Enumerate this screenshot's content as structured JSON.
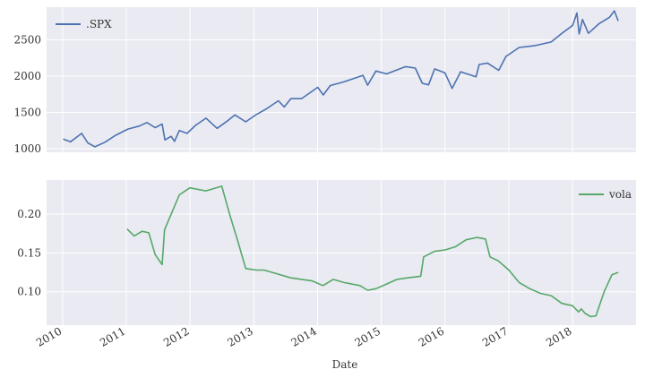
{
  "colors": {
    "panel_background": "#eaeaf2",
    "grid": "#ffffff",
    "spx": "#4c72b0",
    "vola": "#55a868"
  },
  "chart_data": [
    {
      "type": "line",
      "legend_position": "top-left",
      "grid": true,
      "series": [
        {
          "name": ".SPX",
          "color": "#4c72b0",
          "x": [
            "2010-01-04",
            "2010-02-15",
            "2010-04-20",
            "2010-05-25",
            "2010-07-05",
            "2010-09-01",
            "2010-11-01",
            "2011-01-10",
            "2011-03-15",
            "2011-04-29",
            "2011-06-15",
            "2011-07-25",
            "2011-08-10",
            "2011-09-15",
            "2011-10-04",
            "2011-11-01",
            "2011-12-15",
            "2012-02-01",
            "2012-04-02",
            "2012-06-04",
            "2012-08-01",
            "2012-09-14",
            "2012-11-15",
            "2013-01-15",
            "2013-03-15",
            "2013-05-21",
            "2013-06-24",
            "2013-08-01",
            "2013-10-01",
            "2014-01-02",
            "2014-02-03",
            "2014-03-15",
            "2014-06-01",
            "2014-09-18",
            "2014-10-15",
            "2014-12-01",
            "2015-02-01",
            "2015-05-20",
            "2015-07-15",
            "2015-08-24",
            "2015-09-29",
            "2015-11-03",
            "2016-01-01",
            "2016-02-11",
            "2016-03-31",
            "2016-06-27",
            "2016-07-15",
            "2016-09-01",
            "2016-11-04",
            "2016-12-15",
            "2017-03-01",
            "2017-06-01",
            "2017-09-01",
            "2017-11-01",
            "2018-01-02",
            "2018-01-26",
            "2018-02-08",
            "2018-02-27",
            "2018-04-02",
            "2018-06-01",
            "2018-08-01",
            "2018-08-29",
            "2018-09-20"
          ],
          "y": [
            1132,
            1095,
            1210,
            1080,
            1025,
            1090,
            1185,
            1270,
            1310,
            1360,
            1290,
            1340,
            1120,
            1170,
            1100,
            1250,
            1210,
            1320,
            1420,
            1280,
            1380,
            1465,
            1370,
            1470,
            1550,
            1660,
            1575,
            1690,
            1690,
            1845,
            1740,
            1870,
            1920,
            2010,
            1875,
            2070,
            2030,
            2130,
            2110,
            1900,
            1880,
            2100,
            2044,
            1830,
            2060,
            1990,
            2160,
            2180,
            2080,
            2270,
            2395,
            2420,
            2470,
            2590,
            2700,
            2870,
            2580,
            2780,
            2590,
            2720,
            2810,
            2900,
            2760
          ]
        }
      ],
      "ylim": [
        950,
        2950
      ],
      "yticks": [
        "1000",
        "1500",
        "2000",
        "2500"
      ],
      "xlim": [
        "2009-10-01",
        "2018-12-31"
      ]
    },
    {
      "type": "line",
      "legend_position": "top-right",
      "grid": true,
      "series": [
        {
          "name": "vola",
          "color": "#55a868",
          "x": [
            "2011-01-05",
            "2011-02-15",
            "2011-04-01",
            "2011-05-10",
            "2011-06-15",
            "2011-07-25",
            "2011-08-08",
            "2011-09-15",
            "2011-11-01",
            "2011-12-31",
            "2012-04-01",
            "2012-07-01",
            "2012-08-15",
            "2012-10-01",
            "2012-11-15",
            "2013-01-15",
            "2013-03-01",
            "2013-05-01",
            "2013-08-01",
            "2013-10-01",
            "2013-12-01",
            "2014-02-01",
            "2014-04-01",
            "2014-06-01",
            "2014-09-01",
            "2014-10-15",
            "2014-12-01",
            "2015-02-01",
            "2015-04-01",
            "2015-06-01",
            "2015-08-15",
            "2015-09-01",
            "2015-11-01",
            "2016-01-01",
            "2016-03-01",
            "2016-05-01",
            "2016-07-01",
            "2016-08-20",
            "2016-09-15",
            "2016-11-01",
            "2017-01-01",
            "2017-03-01",
            "2017-05-01",
            "2017-07-01",
            "2017-09-01",
            "2017-11-01",
            "2018-01-01",
            "2018-02-05",
            "2018-02-20",
            "2018-03-15",
            "2018-04-15",
            "2018-05-15",
            "2018-07-01",
            "2018-08-15",
            "2018-09-20"
          ],
          "y": [
            0.181,
            0.172,
            0.178,
            0.176,
            0.148,
            0.135,
            0.18,
            0.2,
            0.225,
            0.234,
            0.23,
            0.236,
            0.2,
            0.165,
            0.13,
            0.128,
            0.128,
            0.124,
            0.118,
            0.116,
            0.114,
            0.108,
            0.116,
            0.112,
            0.108,
            0.102,
            0.104,
            0.11,
            0.116,
            0.118,
            0.12,
            0.145,
            0.152,
            0.154,
            0.158,
            0.167,
            0.17,
            0.168,
            0.145,
            0.14,
            0.128,
            0.112,
            0.104,
            0.098,
            0.095,
            0.085,
            0.082,
            0.074,
            0.078,
            0.072,
            0.068,
            0.069,
            0.1,
            0.122,
            0.125
          ]
        }
      ],
      "ylim": [
        0.057,
        0.244
      ],
      "yticks": [
        "0.10",
        "0.15",
        "0.20"
      ],
      "xlim": [
        "2009-10-01",
        "2018-12-31"
      ],
      "xticks": [
        "2010",
        "2011",
        "2012",
        "2013",
        "2014",
        "2015",
        "2016",
        "2017",
        "2018"
      ],
      "xlabel": "Date"
    }
  ]
}
